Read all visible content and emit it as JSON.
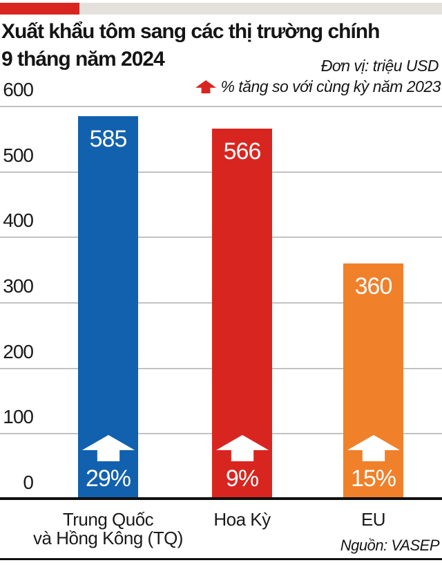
{
  "header": {
    "title_line1": "Xuất khẩu tôm sang các thị trường chính",
    "title_line2": "9 tháng năm 2024",
    "unit_label": "Đơn vị: triệu USD",
    "legend": {
      "icon": "up-arrow-icon",
      "icon_color": "#d9251f",
      "label": "% tăng so với cùng kỳ năm 2023"
    },
    "accent_colors": {
      "red": "#d9251f",
      "gray": "#e4e1dd"
    }
  },
  "chart_data": {
    "type": "bar",
    "title": "Xuất khẩu tôm sang các thị trường chính 9 tháng năm 2024",
    "unit": "triệu USD",
    "categories": [
      "Trung Quốc và Hồng Kông (TQ)",
      "Hoa Kỳ",
      "EU"
    ],
    "category_lines": [
      [
        "Trung Quốc",
        "và Hồng Kông (TQ)"
      ],
      [
        "Hoa Kỳ"
      ],
      [
        "EU"
      ]
    ],
    "values": [
      585,
      566,
      360
    ],
    "pct_change_vs_same_period_2023": [
      "29%",
      "9%",
      "15%"
    ],
    "bar_colors": [
      "#1161ae",
      "#d9251f",
      "#f0802a"
    ],
    "value_label_color": "#ffffff",
    "ylim": [
      0,
      600
    ],
    "yticks": [
      0,
      100,
      200,
      300,
      400,
      500,
      600
    ],
    "xlabel": "",
    "ylabel": "",
    "grid": "horizontal",
    "legend_position": "top-right"
  },
  "footer": {
    "source_label": "Nguồn: VASEP"
  }
}
